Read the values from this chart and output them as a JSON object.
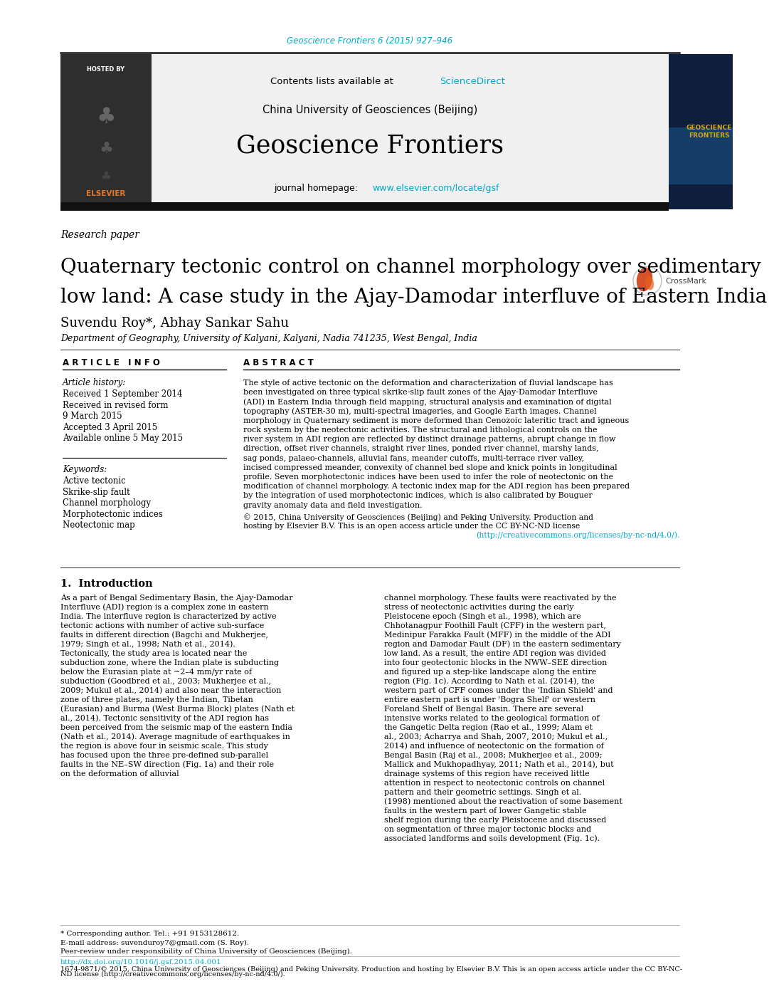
{
  "page_width": 10.2,
  "page_height": 13.59,
  "bg_color": "#ffffff",
  "journal_ref": "Geoscience Frontiers 6 (2015) 927–946",
  "journal_ref_color": "#00aacc",
  "header_bg": "#f0f0f0",
  "hosted_by_text": "HOSTED BY",
  "journal_name_large": "Geoscience Frontiers",
  "china_uni": "China University of Geosciences (Beijing)",
  "link_color": "#00aacc",
  "paper_type": "Research paper",
  "title_line1": "Quaternary tectonic control on channel morphology over sedimentary",
  "title_line2": "low land: A case study in the Ajay-Damodar interfluve of Eastern India",
  "title_color": "#000000",
  "title_fontsize": 20,
  "authors": "Suvendu Roy*, Abhay Sankar Sahu",
  "authors_fontsize": 13,
  "affiliation": "Department of Geography, University of Kalyani, Kalyani, Nadia 741235, West Bengal, India",
  "affiliation_fontsize": 9,
  "article_info_header": "A R T I C L E   I N F O",
  "abstract_header": "A B S T R A C T",
  "article_history_label": "Article history:",
  "received1": "Received 1 September 2014",
  "received_revised": "Received in revised form",
  "date_march": "9 March 2015",
  "accepted": "Accepted 3 April 2015",
  "available": "Available online 5 May 2015",
  "keywords_label": "Keywords:",
  "keywords": [
    "Active tectonic",
    "Skrike-slip fault",
    "Channel morphology",
    "Morphotectonic indices",
    "Neotectonic map"
  ],
  "abstract_text": "The style of active tectonic on the deformation and characterization of fluvial landscape has been investigated on three typical skrike-slip fault zones of the Ajay-Damodar Interfluve (ADI) in Eastern India through field mapping, structural analysis and examination of digital topography (ASTER-30 m), multi-spectral imageries, and Google Earth images. Channel morphology in Quaternary sediment is more deformed than Cenozoic lateritic tract and igneous rock system by the neotectonic activities. The structural and lithological controls on the river system in ADI region are reflected by distinct drainage patterns, abrupt change in flow direction, offset river channels, straight river lines, ponded river channel, marshy lands, sag ponds, palaeo-channels, alluvial fans, meander cutoffs, multi-terrace river valley, incised compressed meander, convexity of channel bed slope and knick points in longitudinal profile. Seven morphotectonic indices have been used to infer the role of neotectonic on the modification of channel morphology. A tectonic index map for the ADI region has been prepared by the integration of used morphotectonic indices, which is also calibrated by Bouguer gravity anomaly data and field investigation.",
  "abstract_copyright": "© 2015, China University of Geosciences (Beijing) and Peking University. Production and hosting by Elsevier B.V. This is an open access article under the CC BY-NC-ND license (http://creativecommons.org/licenses/by-nc-nd/4.0/).",
  "intro_header": "1.  Introduction",
  "intro_col1": "As a part of Bengal Sedimentary Basin, the Ajay-Damodar Interfluve (ADI) region is a complex zone in eastern India. The interfluve region is characterized by active tectonic actions with number of active sub-surface faults in different direction (Bagchi and Mukherjee, 1979; Singh et al., 1998; Nath et al., 2014). Tectonically, the study area is located near the subduction zone, where the Indian plate is subducting below the Eurasian plate at ~2–4 mm/yr rate of subduction (Goodbred et al., 2003; Mukherjee et al., 2009; Mukul et al., 2014) and also near the interaction zone of three plates, namely the Indian, Tibetan (Eurasian) and Burma (West Burma Block) plates (Nath et al., 2014). Tectonic sensitivity of the ADI region has been perceived from the seismic map of the eastern India (Nath et al., 2014). Average magnitude of earthquakes in the region is above four in seismic scale. This study has focused upon the three pre-defined sub-parallel faults in the NE–SW direction (Fig. 1a) and their role on the deformation of alluvial",
  "intro_col2": "channel morphology. These faults were reactivated by the stress of neotectonic activities during the early Pleistocene epoch (Singh et al., 1998), which are Chhotanagpur Foothill Fault (CFF) in the western part, Medinipur Farakka Fault (MFF) in the middle of the ADI region and Damodar Fault (DF) in the eastern sedimentary low land. As a result, the entire ADI region was divided into four geotectonic blocks in the NWW–SEE direction and figured up a step-like landscape along the entire region (Fig. 1c). According to Nath et al. (2014), the western part of CFF comes under the 'Indian Shield' and entire eastern part is under 'Bogra Shelf' or western Foreland Shelf of Bengal Basin. There are several intensive works related to the geological formation of the Gangetic Delta region (Rao et al., 1999; Alam et al., 2003; Acharrya and Shah, 2007, 2010; Mukul et al., 2014) and influence of neotectonic on the formation of Bengal Basin (Raj et al., 2008; Mukherjee et al., 2009; Mallick and Mukhopadhyay, 2011; Nath et al., 2014), but drainage systems of this region have received little attention in respect to neotectonic controls on channel pattern and their geometric settings. Singh et al. (1998) mentioned about the reactivation of some basement faults in the western part of lower Gangetic stable shelf region during the early Pleistocene and discussed on segmentation of three major tectonic blocks and associated landforms and soils development (Fig. 1c).",
  "footer_note": "* Corresponding author. Tel.: +91 9153128612.",
  "footer_email": "E-mail address: suvenduroy7@gmail.com (S. Roy).",
  "footer_peer": "Peer-review under responsibility of China University of Geosciences (Beijing).",
  "doi": "http://dx.doi.org/10.1016/j.gsf.2015.04.001",
  "footer_bottom1": "1674-9871/© 2015, China University of Geosciences (Beijing) and Peking University. Production and hosting by Elsevier B.V. This is an open access article under the CC BY-NC-",
  "footer_bottom2": "ND license (http://creativecommons.org/licenses/by-nc-nd/4.0/)."
}
